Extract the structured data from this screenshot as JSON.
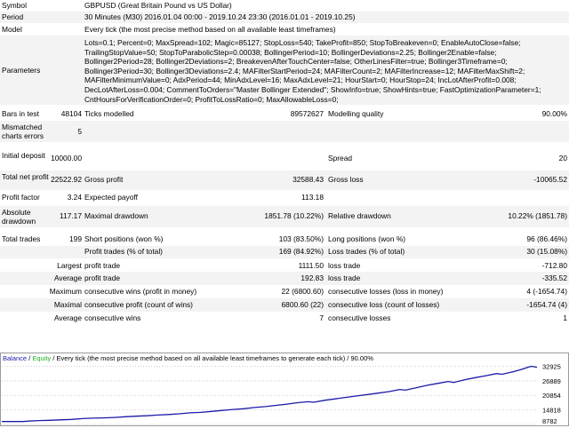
{
  "report": {
    "symbol_label": "Symbol",
    "symbol_value": "GBPUSD (Great Britain Pound vs US Dollar)",
    "period_label": "Period",
    "period_value": "30 Minutes (M30) 2016.01.04 00:00 - 2019.10.24 23:30 (2016.01.01 - 2019.10.25)",
    "model_label": "Model",
    "model_value": "Every tick (the most precise method based on all available least timeframes)",
    "parameters_label": "Parameters",
    "parameters_value": "Lots=0.1; Percent=0; MaxSpread=102; Magic=85127; StopLoss=540; TakeProfit=850; StopToBreakeven=0; EnableAutoClose=false; TrailingStopValue=50; StopToParabolicStep=0.00038; BollingerPeriod=10; BollingerDeviations=2.25; Bollinger2Enable=false; Bollinger2Period=28; Bollinger2Deviations=2; BreakevenAfterTouchCenter=false; OtherLinesFilter=true; Bollinger3Timeframe=0; Bollinger3Period=30; Bollinger3Deviations=2.4; MAFilterStartPeriod=24; MAFilterCount=2; MAFilterIncrease=12; MAFilterMaxShift=2; MAFilterMinimumValue=0; AdxPeriod=44; MinAdxLevel=16; MaxAdxLevel=21; HourStart=0; HourStop=24; IncLotAfterProfit=0.008; DecLotAfterLoss=0.004; CommentToOrders=\"Master Bollinger Extended\"; ShowInfo=true; ShowHints=true; FastOptimizationParameter=1; CntHoursForVerificationOrder=0; ProfitToLossRatio=0; MaxAllowableLoss=0;",
    "bars_label": "Bars in test",
    "bars_value": "48104",
    "ticks_label": "Ticks modelled",
    "ticks_value": "89572627",
    "quality_label": "Modelling quality",
    "quality_value": "90.00%",
    "mismatch_label": "Mismatched charts errors",
    "mismatch_value": "5",
    "deposit_label": "Initial deposit",
    "deposit_value": "10000.00",
    "spread_label": "Spread",
    "spread_value": "20",
    "net_label": "Total net profit",
    "net_value": "22522.92",
    "gross_profit_label": "Gross profit",
    "gross_profit_value": "32588.43",
    "gross_loss_label": "Gross loss",
    "gross_loss_value": "-10065.52",
    "pf_label": "Profit factor",
    "pf_value": "3.24",
    "payoff_label": "Expected payoff",
    "payoff_value": "113.18",
    "abs_dd_label": "Absolute drawdown",
    "abs_dd_value": "117.17",
    "max_dd_label": "Maximal drawdown",
    "max_dd_value": "1851.78 (10.22%)",
    "rel_dd_label": "Relative drawdown",
    "rel_dd_value": "10.22% (1851.78)",
    "trades_label": "Total trades",
    "trades_value": "199",
    "short_label": "Short positions (won %)",
    "short_value": "103 (83.50%)",
    "long_label": "Long positions (won %)",
    "long_value": "96 (86.46%)",
    "profit_trades_label": "Profit trades (% of total)",
    "profit_trades_value": "169 (84.92%)",
    "loss_trades_label": "Loss trades (% of total)",
    "loss_trades_value": "30 (15.08%)",
    "largest_label": "Largest",
    "largest_profit_label": "profit trade",
    "largest_profit_value": "1111.50",
    "largest_loss_label": "loss trade",
    "largest_loss_value": "-712.80",
    "average_label": "Average",
    "average_profit_label": "profit trade",
    "average_profit_value": "192.83",
    "average_loss_label": "loss trade",
    "average_loss_value": "-335.52",
    "maximum_label": "Maximum",
    "max_wins_label": "consecutive wins (profit in money)",
    "max_wins_value": "22 (6800.60)",
    "max_losses_label": "consecutive losses (loss in money)",
    "max_losses_value": "4 (-1654.74)",
    "maximal_label": "Maximal",
    "maximal_profit_label": "consecutive profit (count of wins)",
    "maximal_profit_value": "6800.60 (22)",
    "maximal_loss_label": "consecutive loss (count of losses)",
    "maximal_loss_value": "-1654.74 (4)",
    "avg_cons_label": "Average",
    "avg_wins_label": "consecutive wins",
    "avg_wins_value": "7",
    "avg_losses_label": "consecutive losses",
    "avg_losses_value": "1"
  },
  "chart_legend": {
    "balance": "Balance",
    "sep": " / ",
    "equity": "Equity",
    "rest": " / Every tick (the most precise method based on all available least timeframes to generate each tick) / 90.00%"
  },
  "colors": {
    "balance": "#1a1aa8",
    "equity": "#22aa22",
    "stripe": "#f3f3f3"
  },
  "chart_data": {
    "type": "line",
    "title": "",
    "xlabel": "",
    "ylabel": "",
    "y_ticks": [
      "32925",
      "26889",
      "20854",
      "14818",
      "8782"
    ],
    "ylim": [
      8782,
      34200
    ],
    "x_count": 199,
    "series": [
      {
        "name": "Balance",
        "points": [
          [
            0,
            10000
          ],
          [
            8,
            10000
          ],
          [
            10,
            10200
          ],
          [
            14,
            10400
          ],
          [
            18,
            10500
          ],
          [
            22,
            10700
          ],
          [
            26,
            10900
          ],
          [
            30,
            11200
          ],
          [
            34,
            11400
          ],
          [
            38,
            11500
          ],
          [
            42,
            11700
          ],
          [
            46,
            12000
          ],
          [
            50,
            12200
          ],
          [
            54,
            12400
          ],
          [
            58,
            12700
          ],
          [
            62,
            12900
          ],
          [
            66,
            13200
          ],
          [
            70,
            13600
          ],
          [
            74,
            13800
          ],
          [
            78,
            14200
          ],
          [
            82,
            14600
          ],
          [
            86,
            15000
          ],
          [
            90,
            15300
          ],
          [
            94,
            15800
          ],
          [
            98,
            16200
          ],
          [
            102,
            16700
          ],
          [
            106,
            17200
          ],
          [
            110,
            17800
          ],
          [
            114,
            18200
          ],
          [
            116,
            18000
          ],
          [
            120,
            18800
          ],
          [
            124,
            19400
          ],
          [
            128,
            20000
          ],
          [
            132,
            20600
          ],
          [
            136,
            21200
          ],
          [
            140,
            21800
          ],
          [
            144,
            22400
          ],
          [
            148,
            23300
          ],
          [
            150,
            23000
          ],
          [
            154,
            24000
          ],
          [
            158,
            25000
          ],
          [
            162,
            25800
          ],
          [
            166,
            26600
          ],
          [
            168,
            26200
          ],
          [
            172,
            27300
          ],
          [
            176,
            28200
          ],
          [
            180,
            29000
          ],
          [
            184,
            29900
          ],
          [
            186,
            29600
          ],
          [
            190,
            30600
          ],
          [
            193,
            31500
          ],
          [
            196,
            32600
          ],
          [
            197,
            32900
          ],
          [
            199,
            32522
          ]
        ]
      }
    ]
  }
}
